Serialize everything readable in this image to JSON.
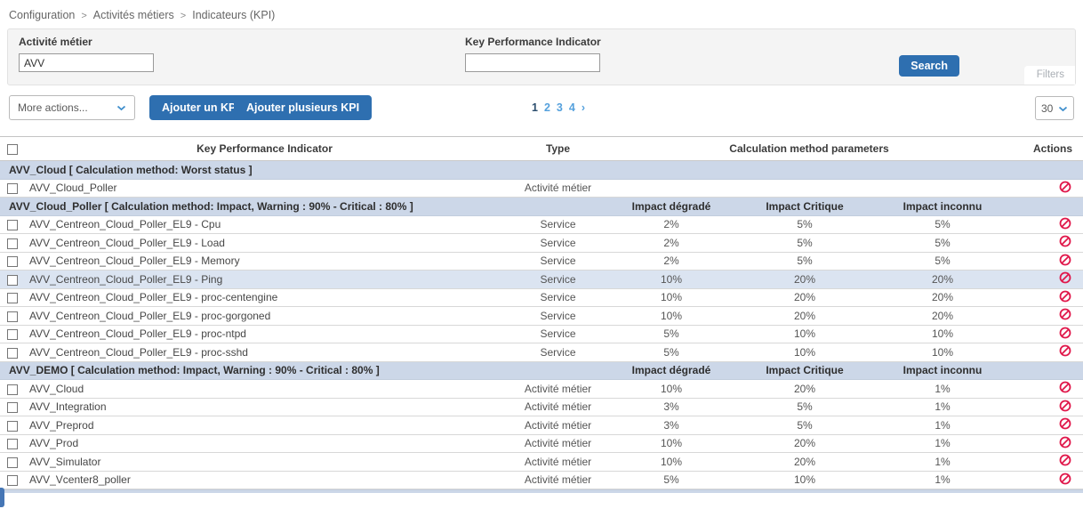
{
  "breadcrumb": {
    "separator": ">",
    "items": [
      "Configuration",
      "Activités métiers",
      "Indicateurs (KPI)"
    ]
  },
  "filter_panel": {
    "activity_label": "Activité métier",
    "activity_value": "AVV",
    "kpi_label": "Key Performance Indicator",
    "kpi_value": "",
    "search_button": "Search",
    "filters_link": "Filters"
  },
  "toolbar": {
    "more_actions": "More actions...",
    "add_kpi_button": "Ajouter un KPI",
    "add_multiple_kpi_button": "Ajouter plusieurs KPI",
    "pagination": {
      "pages": [
        "1",
        "2",
        "3",
        "4"
      ],
      "current": "1",
      "next_arrow": "›"
    },
    "page_size": "30"
  },
  "table": {
    "columns": {
      "kpi": "Key Performance Indicator",
      "type": "Type",
      "calc_params": "Calculation method parameters",
      "actions": "Actions"
    },
    "impact_headers": [
      "Impact dégradé",
      "Impact Critique",
      "Impact inconnu"
    ],
    "groups": [
      {
        "title": "AVV_Cloud [ Calculation method: Worst status ]",
        "show_impact_headers": false,
        "rows": [
          {
            "name": "AVV_Cloud_Poller",
            "type": "Activité métier",
            "values": [
              "",
              "",
              ""
            ],
            "highlighted": false
          }
        ]
      },
      {
        "title": "AVV_Cloud_Poller [ Calculation method: Impact, Warning : 90% - Critical : 80% ]",
        "show_impact_headers": true,
        "rows": [
          {
            "name": "AVV_Centreon_Cloud_Poller_EL9 - Cpu",
            "type": "Service",
            "values": [
              "2%",
              "5%",
              "5%"
            ],
            "highlighted": false
          },
          {
            "name": "AVV_Centreon_Cloud_Poller_EL9 - Load",
            "type": "Service",
            "values": [
              "2%",
              "5%",
              "5%"
            ],
            "highlighted": false
          },
          {
            "name": "AVV_Centreon_Cloud_Poller_EL9 - Memory",
            "type": "Service",
            "values": [
              "2%",
              "5%",
              "5%"
            ],
            "highlighted": false
          },
          {
            "name": "AVV_Centreon_Cloud_Poller_EL9 - Ping",
            "type": "Service",
            "values": [
              "10%",
              "20%",
              "20%"
            ],
            "highlighted": true
          },
          {
            "name": "AVV_Centreon_Cloud_Poller_EL9 - proc-centengine",
            "type": "Service",
            "values": [
              "10%",
              "20%",
              "20%"
            ],
            "highlighted": false
          },
          {
            "name": "AVV_Centreon_Cloud_Poller_EL9 - proc-gorgoned",
            "type": "Service",
            "values": [
              "10%",
              "20%",
              "20%"
            ],
            "highlighted": false
          },
          {
            "name": "AVV_Centreon_Cloud_Poller_EL9 - proc-ntpd",
            "type": "Service",
            "values": [
              "5%",
              "10%",
              "10%"
            ],
            "highlighted": false
          },
          {
            "name": "AVV_Centreon_Cloud_Poller_EL9 - proc-sshd",
            "type": "Service",
            "values": [
              "5%",
              "10%",
              "10%"
            ],
            "highlighted": false
          }
        ]
      },
      {
        "title": "AVV_DEMO [ Calculation method: Impact, Warning : 90% - Critical : 80% ]",
        "show_impact_headers": true,
        "rows": [
          {
            "name": "AVV_Cloud",
            "type": "Activité métier",
            "values": [
              "10%",
              "20%",
              "1%"
            ],
            "highlighted": false
          },
          {
            "name": "AVV_Integration",
            "type": "Activité métier",
            "values": [
              "3%",
              "5%",
              "1%"
            ],
            "highlighted": false
          },
          {
            "name": "AVV_Preprod",
            "type": "Activité métier",
            "values": [
              "3%",
              "5%",
              "1%"
            ],
            "highlighted": false
          },
          {
            "name": "AVV_Prod",
            "type": "Activité métier",
            "values": [
              "10%",
              "20%",
              "1%"
            ],
            "highlighted": false
          },
          {
            "name": "AVV_Simulator",
            "type": "Activité métier",
            "values": [
              "10%",
              "20%",
              "1%"
            ],
            "highlighted": false
          },
          {
            "name": "AVV_Vcenter8_poller",
            "type": "Activité métier",
            "values": [
              "5%",
              "10%",
              "1%"
            ],
            "highlighted": false
          }
        ]
      }
    ]
  },
  "colors": {
    "accent_blue": "#2e6fb0",
    "group_row_bg": "#ccd7e8",
    "highlight_row_bg": "#dbe4f1",
    "action_icon_red": "#e0174a",
    "chevron_blue": "#3e8ecc",
    "pagination_link": "#55a1dd",
    "pagination_current": "#2c4e6e"
  }
}
